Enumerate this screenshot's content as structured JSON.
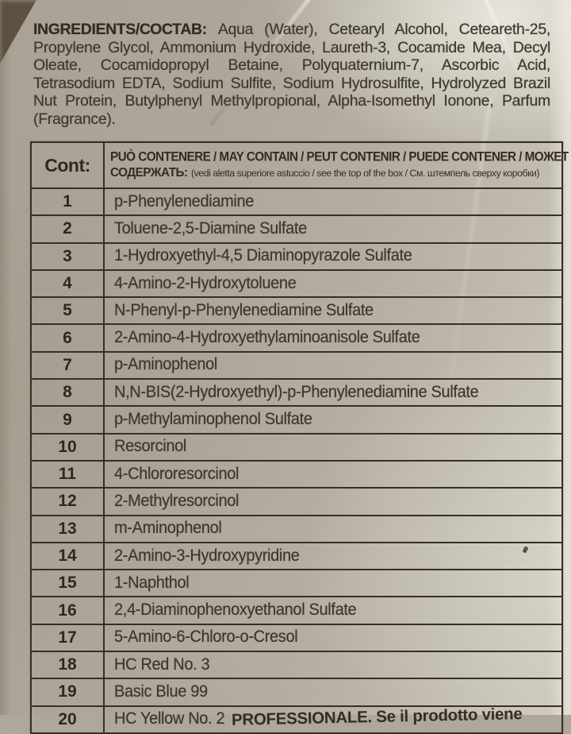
{
  "ingredients": {
    "label": "INGREDIENTS/СОСТАВ:",
    "text": "Aqua (Water), Cetearyl Alcohol, Ceteareth-25, Propylene Glycol, Ammonium Hydroxide, Laureth-3, Cocamide Mea, Decyl Oleate, Cocamidopropyl Betaine, Polyquaternium-7, Ascorbic Acid, Tetrasodium EDTA, Sodium Sulfite, Sodium Hydrosulfite, Hydrolyzed Brazil Nut Protein, Butylphenyl Methylpropional, Alpha-Isomethyl Ionone, Parfum (Fragrance)."
  },
  "table": {
    "header": {
      "col1": "Cont:",
      "col2_line1": "PUÒ CONTENERE / MAY CONTAIN / PEUT CONTENIR / PUEDE CONTENER / МОЖЕТ",
      "col2_line2_bold": "СОДЕРЖАТЬ:",
      "col2_line2_small": "(vedi aletta superiore astuccio / see the top of the box / См. штемпель сверху коробки)"
    },
    "rows": [
      {
        "num": "1",
        "name": "p-Phenylenediamine"
      },
      {
        "num": "2",
        "name": "Toluene-2,5-Diamine Sulfate"
      },
      {
        "num": "3",
        "name": "1-Hydroxyethyl-4,5 Diaminopyrazole Sulfate"
      },
      {
        "num": "4",
        "name": "4-Amino-2-Hydroxytoluene"
      },
      {
        "num": "5",
        "name": "N-Phenyl-p-Phenylenediamine Sulfate"
      },
      {
        "num": "6",
        "name": "2-Amino-4-Hydroxyethylaminoanisole Sulfate"
      },
      {
        "num": "7",
        "name": "p-Aminophenol"
      },
      {
        "num": "8",
        "name": "N,N-BIS(2-Hydroxyethyl)-p-Phenylenediamine Sulfate"
      },
      {
        "num": "9",
        "name": "p-Methylaminophenol Sulfate"
      },
      {
        "num": "10",
        "name": "Resorcinol"
      },
      {
        "num": "11",
        "name": "4-Chlororesorcinol"
      },
      {
        "num": "12",
        "name": "2-Methylresorcinol"
      },
      {
        "num": "13",
        "name": "m-Aminophenol"
      },
      {
        "num": "14",
        "name": "2-Amino-3-Hydroxypyridine"
      },
      {
        "num": "15",
        "name": "1-Naphthol"
      },
      {
        "num": "16",
        "name": "2,4-Diaminophenoxyethanol Sulfate"
      },
      {
        "num": "17",
        "name": "5-Amino-6-Chloro-o-Cresol"
      },
      {
        "num": "18",
        "name": "HC Red No. 3"
      },
      {
        "num": "19",
        "name": "Basic Blue 99"
      },
      {
        "num": "20",
        "name": "HC Yellow No. 2"
      }
    ]
  },
  "bottom_partial_text": "PROFESSIONALE. Se il prodotto viene",
  "colors": {
    "cardboard": "#b0a99c",
    "ink": "#3e362a",
    "border": "#372f24"
  }
}
